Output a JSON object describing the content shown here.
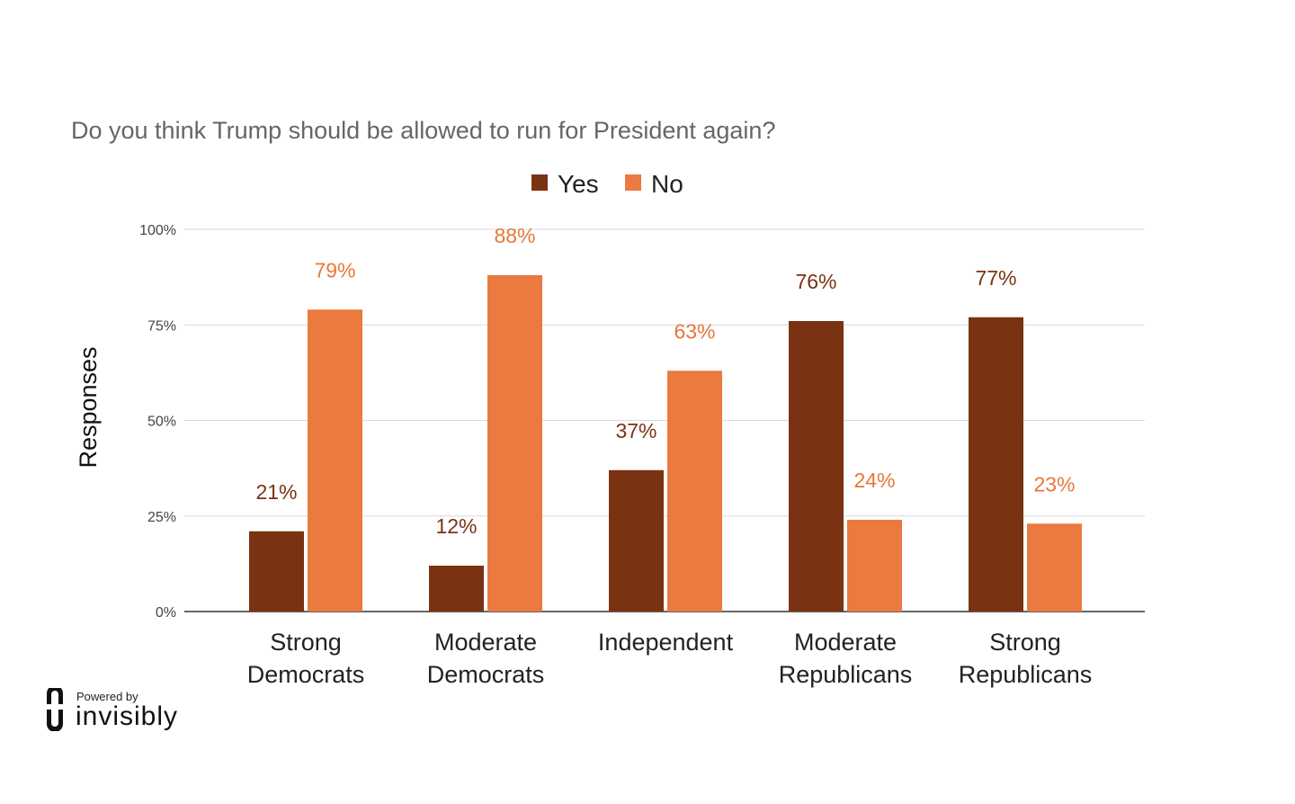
{
  "chart_data": {
    "type": "bar",
    "title": "Do you think Trump should be allowed to run for President again?",
    "xlabel": "",
    "ylabel": "Responses",
    "ylim": [
      0,
      100
    ],
    "yticks": [
      "0%",
      "25%",
      "50%",
      "75%",
      "100%"
    ],
    "ytick_values": [
      0,
      25,
      50,
      75,
      100
    ],
    "categories": [
      [
        "Strong",
        "Democrats"
      ],
      [
        "Moderate",
        "Democrats"
      ],
      [
        "Independent"
      ],
      [
        "Moderate",
        "Republicans"
      ],
      [
        "Strong",
        "Republicans"
      ]
    ],
    "series": [
      {
        "name": "Yes",
        "color": "#7a3312",
        "label_color": "#7a3312",
        "values": [
          21,
          12,
          37,
          76,
          77
        ],
        "labels": [
          "21%",
          "12%",
          "37%",
          "76%",
          "77%"
        ]
      },
      {
        "name": "No",
        "color": "#ea7a40",
        "label_color": "#e8763b",
        "values": [
          79,
          88,
          63,
          24,
          23
        ],
        "labels": [
          "79%",
          "88%",
          "63%",
          "24%",
          "23%"
        ]
      }
    ],
    "legend_position": "top-center",
    "grid": true
  },
  "branding": {
    "powered_by": "Powered by",
    "name": "invisibly"
  }
}
